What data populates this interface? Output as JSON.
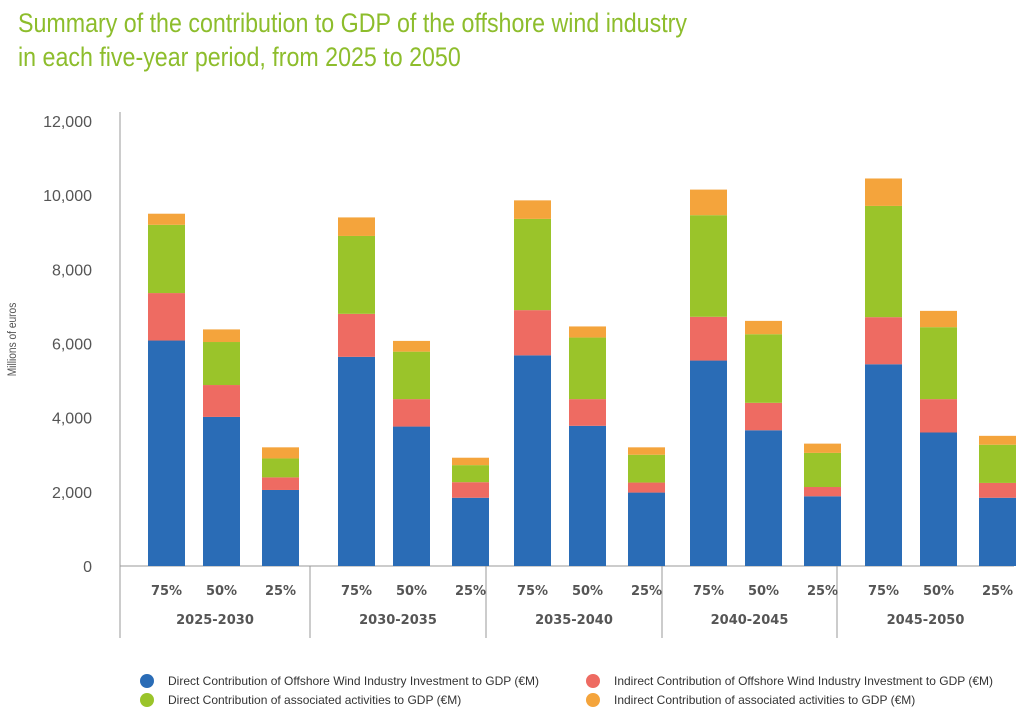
{
  "title_lines": [
    "Summary of the contribution to GDP of the offshore wind industry",
    "in each five-year period, from 2025 to 2050"
  ],
  "colors": {
    "title": "#8dbd2c",
    "direct_investment": "#2a6cb6",
    "indirect_investment": "#ee6b62",
    "direct_associated": "#9ac42a",
    "indirect_associated": "#f4a43c",
    "axis": "#999999",
    "tick_text": "#555555"
  },
  "chart_data": {
    "type": "bar",
    "stacked": true,
    "ylabel": "Millions of euros",
    "ylim": [
      0,
      12000
    ],
    "yticks": [
      0,
      2000,
      4000,
      6000,
      8000,
      10000,
      12000
    ],
    "ytick_labels": [
      "0",
      "2,000",
      "4,000",
      "6,000",
      "8,000",
      "10,000",
      "12,000"
    ],
    "groups": [
      "2025-2030",
      "2030-2035",
      "2035-2040",
      "2040-2045",
      "2045-2050"
    ],
    "scenarios": [
      "75%",
      "50%",
      "25%"
    ],
    "categories": [
      "2025-2030 75%",
      "2025-2030 50%",
      "2025-2030 25%",
      "2030-2035 75%",
      "2030-2035 50%",
      "2030-2035 25%",
      "2035-2040 75%",
      "2035-2040 50%",
      "2035-2040 25%",
      "2040-2045 75%",
      "2040-2045 50%",
      "2040-2045 25%",
      "2045-2050 75%",
      "2045-2050 50%",
      "2045-2050 25%"
    ],
    "series": [
      {
        "name": "Direct Contribution of Offshore Wind Industry Investment to GDP (€M)",
        "color": "#2a6cb6",
        "values": [
          6080,
          4020,
          2050,
          5640,
          3760,
          1840,
          5680,
          3780,
          1980,
          5540,
          3660,
          1880,
          5440,
          3600,
          1840
        ]
      },
      {
        "name": "Indirect Contribution of Offshore Wind Industry Investment to GDP (€M)",
        "color": "#ee6b62",
        "values": [
          1280,
          860,
          340,
          1160,
          740,
          420,
          1220,
          720,
          270,
          1180,
          740,
          250,
          1270,
          900,
          400
        ]
      },
      {
        "name": "Direct Contribution of associated activities to GDP (€M)",
        "color": "#9ac42a",
        "values": [
          1840,
          1160,
          510,
          2100,
          1280,
          460,
          2460,
          1660,
          750,
          2740,
          1850,
          920,
          3000,
          1940,
          1030
        ]
      },
      {
        "name": "Indirect Contribution of associated activities to GDP (€M)",
        "color": "#f4a43c",
        "values": [
          300,
          340,
          300,
          500,
          290,
          200,
          500,
          300,
          200,
          690,
          360,
          250,
          740,
          440,
          240
        ]
      }
    ],
    "legend_position": "bottom",
    "grid": false
  }
}
